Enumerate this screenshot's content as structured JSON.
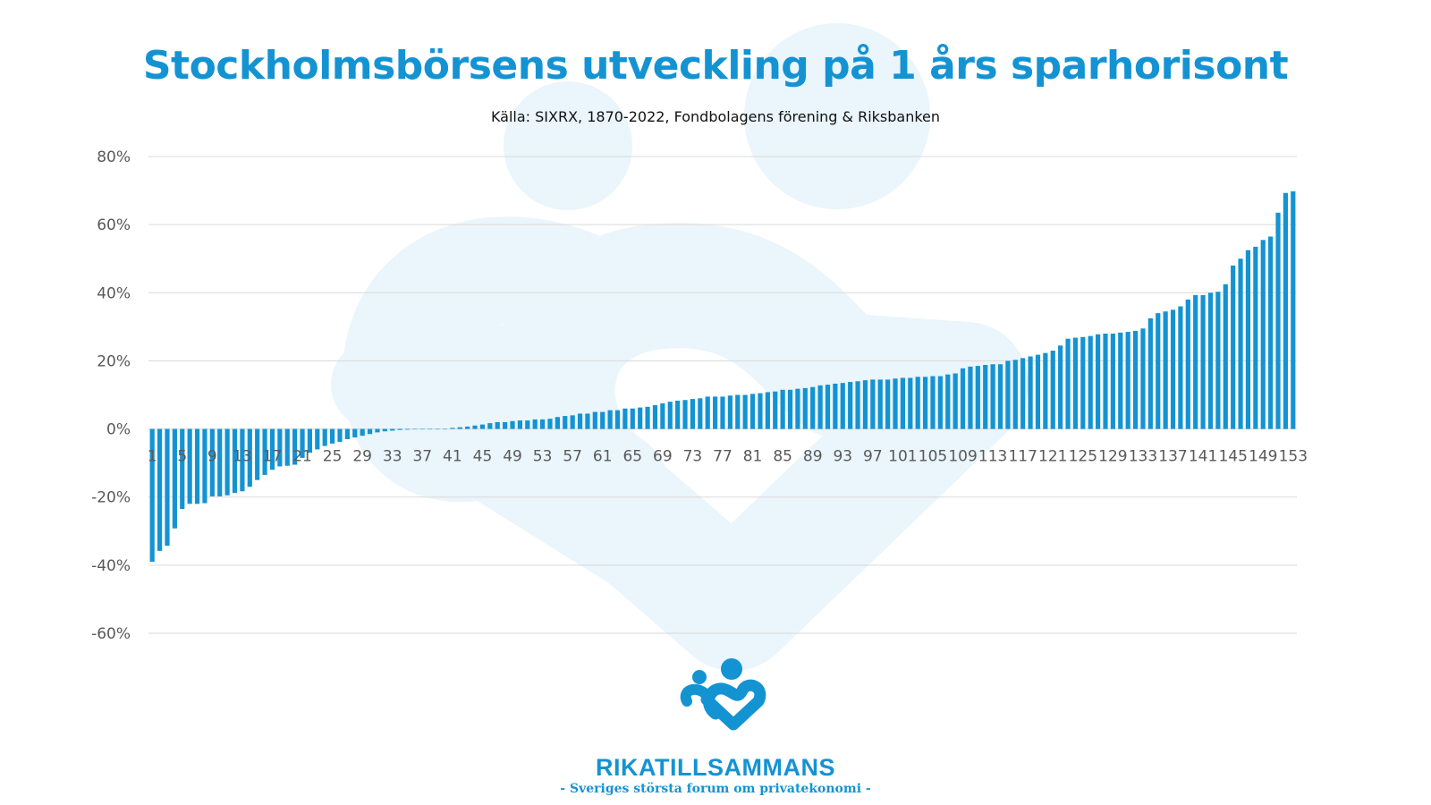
{
  "brand": {
    "name": "RIKATILLSAMMANS",
    "tagline": "- Sveriges största forum om privatekonomi -",
    "accent_color": "#1493d3",
    "watermark_color": "#eaf5fc",
    "logo_icon": "people-heart-icon"
  },
  "chart_data": {
    "type": "bar",
    "title": "Stockholmsbörsens utveckling på 1 års sparhorisont",
    "subtitle": "Källa: SIXRX, 1870-2022, Fondbolagens förening & Riksbanken",
    "xlabel": "",
    "ylabel": "",
    "bar_color": "#1493d3",
    "grid": true,
    "ylim": [
      -60,
      80
    ],
    "yticks": [
      "80%",
      "60%",
      "40%",
      "20%",
      "0%",
      "-20%",
      "-40%",
      "-60%"
    ],
    "ytick_values": [
      80,
      60,
      40,
      20,
      0,
      -20,
      -40,
      -60
    ],
    "categories": [
      1,
      2,
      3,
      4,
      5,
      6,
      7,
      8,
      9,
      10,
      11,
      12,
      13,
      14,
      15,
      16,
      17,
      18,
      19,
      20,
      21,
      22,
      23,
      24,
      25,
      26,
      27,
      28,
      29,
      30,
      31,
      32,
      33,
      34,
      35,
      36,
      37,
      38,
      39,
      40,
      41,
      42,
      43,
      44,
      45,
      46,
      47,
      48,
      49,
      50,
      51,
      52,
      53,
      54,
      55,
      56,
      57,
      58,
      59,
      60,
      61,
      62,
      63,
      64,
      65,
      66,
      67,
      68,
      69,
      70,
      71,
      72,
      73,
      74,
      75,
      76,
      77,
      78,
      79,
      80,
      81,
      82,
      83,
      84,
      85,
      86,
      87,
      88,
      89,
      90,
      91,
      92,
      93,
      94,
      95,
      96,
      97,
      98,
      99,
      100,
      101,
      102,
      103,
      104,
      105,
      106,
      107,
      108,
      109,
      110,
      111,
      112,
      113,
      114,
      115,
      116,
      117,
      118,
      119,
      120,
      121,
      122,
      123,
      124,
      125,
      126,
      127,
      128,
      129,
      130,
      131,
      132,
      133,
      134,
      135,
      136,
      137,
      138,
      139,
      140,
      141,
      142,
      143,
      144,
      145,
      146,
      147,
      148,
      149,
      150,
      151,
      152,
      153
    ],
    "xtick_labels": [
      "1",
      "5",
      "9",
      "13",
      "17",
      "21",
      "25",
      "29",
      "33",
      "37",
      "41",
      "45",
      "49",
      "53",
      "57",
      "61",
      "65",
      "69",
      "73",
      "77",
      "81",
      "85",
      "89",
      "93",
      "97",
      "101",
      "105",
      "109",
      "113",
      "117",
      "121",
      "125",
      "129",
      "133",
      "137",
      "141",
      "145",
      "149",
      "153"
    ],
    "values": [
      -39,
      -35.8,
      -34.3,
      -29.2,
      -23.5,
      -22,
      -22,
      -21.8,
      -19.8,
      -19.8,
      -19.5,
      -18.8,
      -18.3,
      -17,
      -15,
      -13.5,
      -12,
      -11,
      -10.8,
      -10.5,
      -8.5,
      -7,
      -6,
      -5,
      -4.3,
      -3.8,
      -3,
      -2.5,
      -2,
      -1.5,
      -1,
      -0.7,
      -0.5,
      -0.3,
      -0.2,
      -0.1,
      -0.1,
      0,
      0,
      0,
      0.3,
      0.5,
      0.7,
      1,
      1.3,
      1.7,
      2,
      2,
      2.3,
      2.5,
      2.5,
      2.8,
      2.8,
      3,
      3.5,
      3.8,
      4,
      4.5,
      4.5,
      5,
      5,
      5.5,
      5.5,
      6,
      6,
      6.3,
      6.5,
      7,
      7.5,
      8,
      8.3,
      8.5,
      8.8,
      9,
      9.5,
      9.5,
      9.5,
      9.8,
      10,
      10,
      10.3,
      10.5,
      10.8,
      11,
      11.5,
      11.5,
      11.8,
      12,
      12.3,
      12.8,
      13,
      13.3,
      13.5,
      13.8,
      14,
      14.3,
      14.5,
      14.5,
      14.5,
      14.8,
      15,
      15,
      15.3,
      15.3,
      15.5,
      15.5,
      16,
      16.3,
      17.8,
      18.3,
      18.5,
      18.8,
      19,
      19,
      20,
      20.3,
      20.8,
      21.3,
      21.8,
      22.3,
      23,
      24.5,
      26.5,
      26.8,
      27,
      27.3,
      27.8,
      28,
      28,
      28.3,
      28.5,
      28.8,
      29.5,
      32.5,
      34,
      34.5,
      35,
      36,
      38,
      39.3,
      39.3,
      40,
      40.3,
      42.5,
      48,
      50,
      52.5,
      53.5,
      55.5,
      56.5,
      63.5,
      69.3,
      69.8
    ]
  }
}
